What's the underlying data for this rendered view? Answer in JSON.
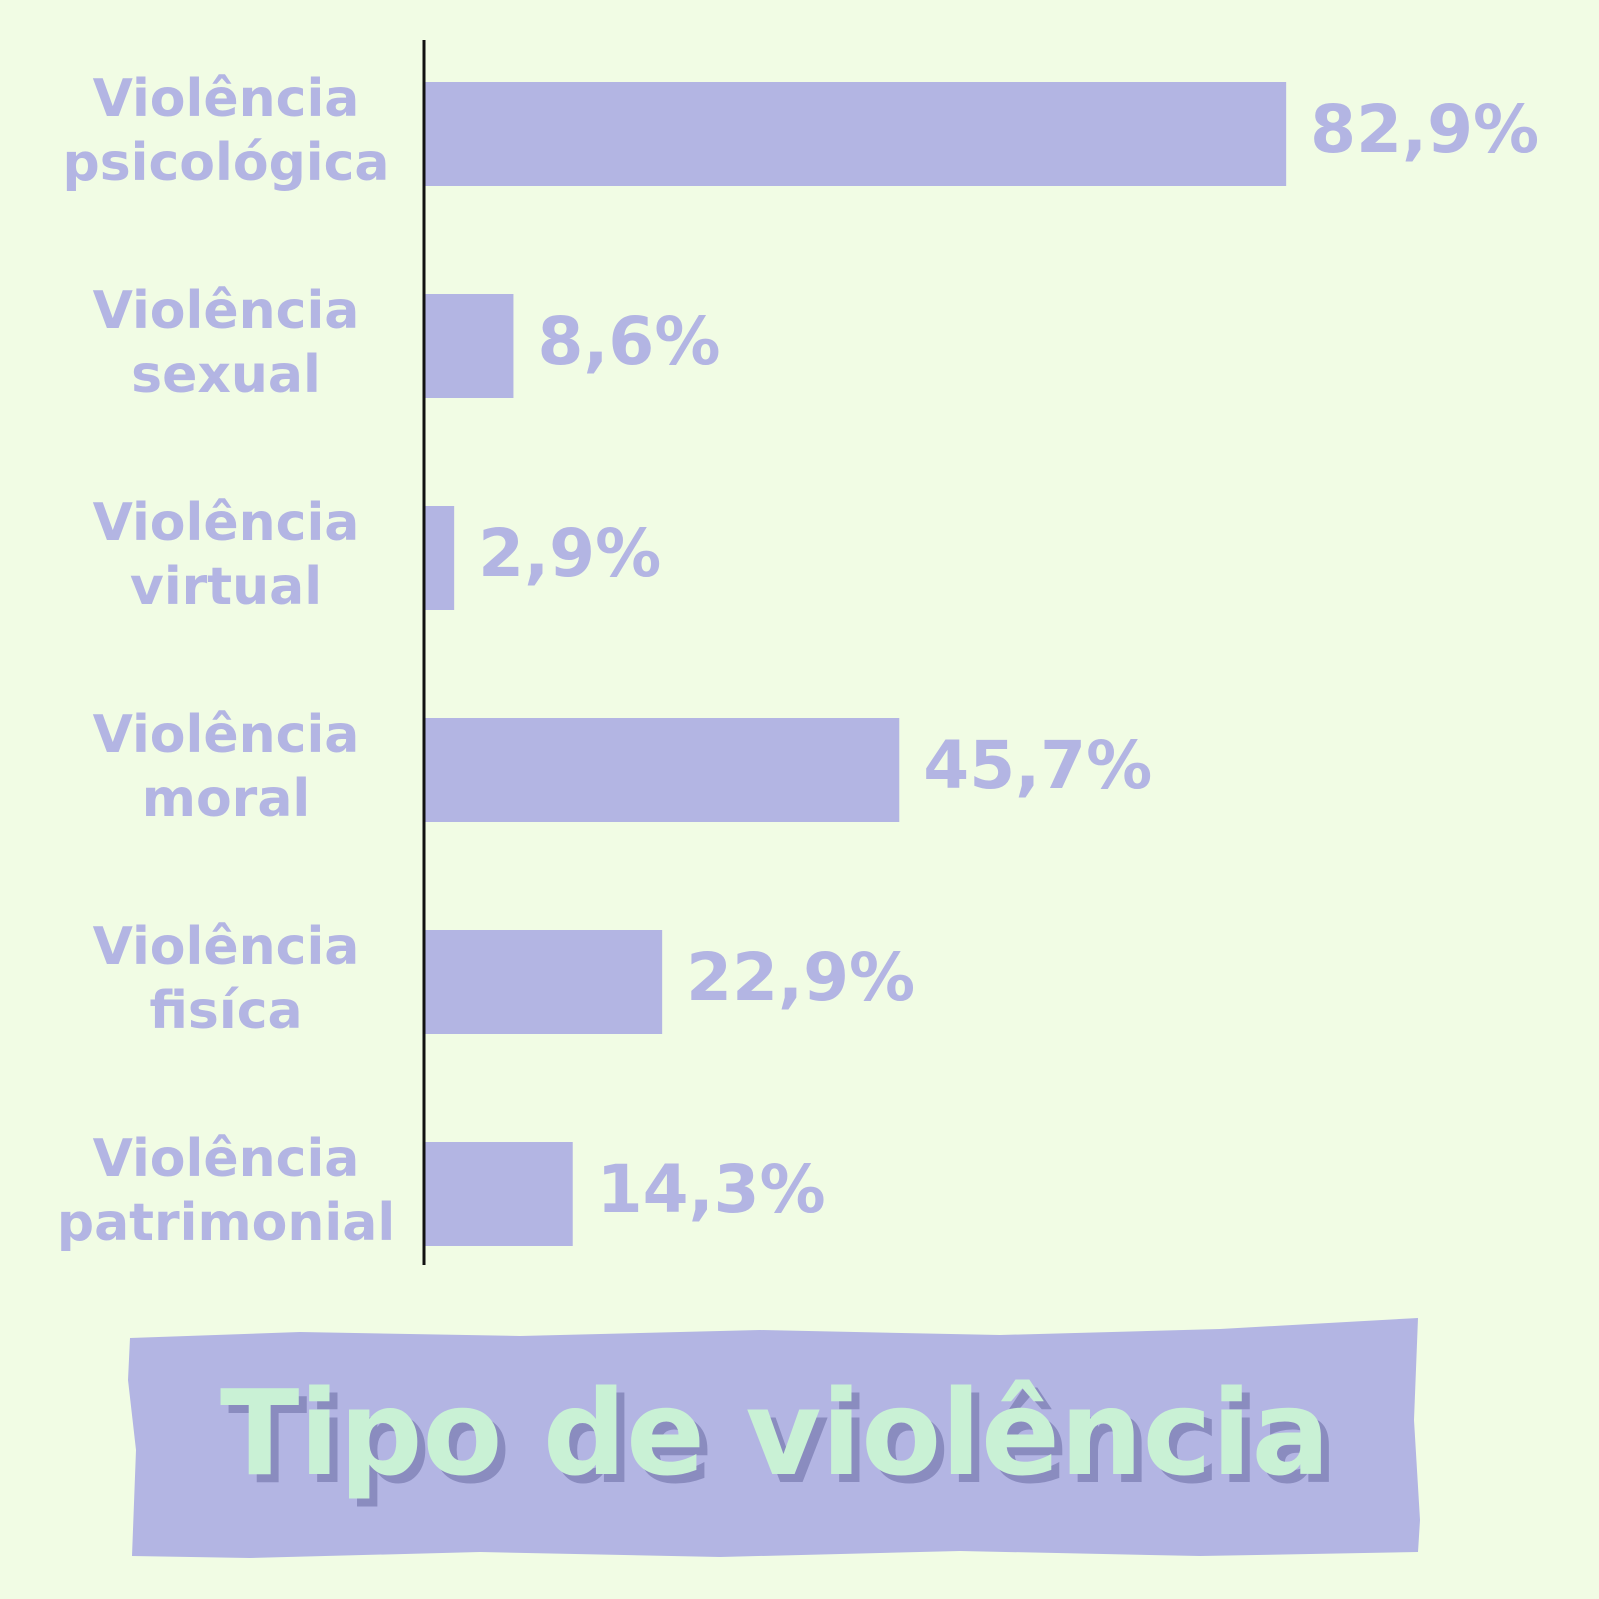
{
  "chart_data": {
    "type": "bar",
    "orientation": "horizontal",
    "title": "Tipo de violência",
    "categories": [
      [
        "Violência",
        "psicológica"
      ],
      [
        "Violência",
        "sexual"
      ],
      [
        "Violência",
        "virtual"
      ],
      [
        "Violência",
        "moral"
      ],
      [
        "Violência",
        "fisíca"
      ],
      [
        "Violência",
        "patrimonial"
      ]
    ],
    "values": [
      82.9,
      8.6,
      2.9,
      45.7,
      22.9,
      14.3
    ],
    "value_labels": [
      "82,9%",
      "8,6%",
      "2,9%",
      "45,7%",
      "22,9%",
      "14,3%"
    ],
    "xlim": [
      0,
      100
    ],
    "grid": false,
    "legend": "none"
  },
  "colors": {
    "background": "#f1fce4",
    "bar": "#b3b5e3",
    "text": "#b3b5e3",
    "axis": "#111111",
    "title_fill": "#c9f1d5",
    "title_shadow": "#8a8cbf",
    "title_banner": "#b3b5e3"
  }
}
